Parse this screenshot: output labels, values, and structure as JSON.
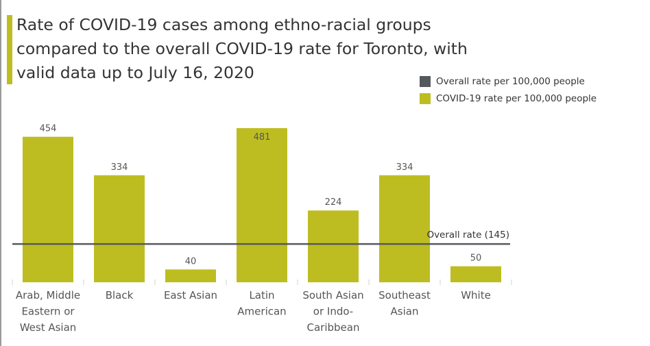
{
  "title_lines": [
    "Rate of COVID-19 cases among ethno-racial groups",
    "compared to the overall COVID-19 rate for Toronto, with",
    "valid data up to July 16, 2020"
  ],
  "legend": [
    {
      "label": "Overall rate per 100,000 people",
      "color": "#55595e"
    },
    {
      "label": "COVID-19 rate per 100,000 people",
      "color": "#bdbd22"
    }
  ],
  "chart_data": {
    "type": "bar",
    "categories": [
      [
        "Arab, Middle",
        "Eastern or",
        "West Asian"
      ],
      [
        "Black"
      ],
      [
        "East Asian"
      ],
      [
        "Latin",
        "American"
      ],
      [
        "South Asian",
        "or Indo-",
        "Caribbean"
      ],
      [
        "Southeast",
        "Asian"
      ],
      [
        "White"
      ]
    ],
    "values": [
      454,
      334,
      40,
      481,
      224,
      334,
      50
    ],
    "value_labels": [
      "454",
      "334",
      "40",
      "481",
      "224",
      "334",
      "50"
    ],
    "reference_line": {
      "value": 145,
      "label": "Overall rate (145)",
      "color": "#55595e"
    },
    "bar_color": "#bdbd22",
    "ylim": [
      0,
      481
    ]
  }
}
